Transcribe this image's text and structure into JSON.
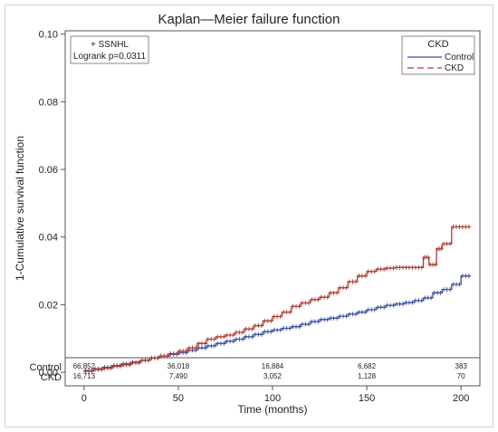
{
  "chart_data": {
    "type": "line",
    "title": "Kaplan—Meier failure function",
    "xlabel": "Time (months)",
    "ylabel": "1-Cumulative survival function",
    "xlim": [
      -10,
      210
    ],
    "ylim": [
      -0.004,
      0.101
    ],
    "x_ticks": [
      0,
      50,
      100,
      150,
      200
    ],
    "y_ticks": [
      "0.00",
      "0.02",
      "0.04",
      "0.06",
      "0.08",
      "0.10"
    ],
    "y_tick_values": [
      0,
      0.02,
      0.04,
      0.06,
      0.08,
      0.1
    ],
    "grid": false,
    "censor_marker": "+",
    "annotation": [
      "+ SSNHL",
      "Logrank p=0.0311"
    ],
    "legend": {
      "title": "CKD",
      "position": "top-right"
    },
    "series": [
      {
        "name": "Control",
        "color": "#3a4f9e",
        "dash": "solid",
        "x": [
          0,
          5,
          10,
          15,
          20,
          25,
          30,
          35,
          40,
          45,
          50,
          55,
          60,
          65,
          70,
          75,
          80,
          85,
          90,
          95,
          100,
          105,
          110,
          115,
          120,
          125,
          130,
          135,
          140,
          145,
          150,
          155,
          160,
          165,
          170,
          175,
          180,
          185,
          190,
          195,
          200,
          205
        ],
        "y": [
          0.0005,
          0.001,
          0.0015,
          0.002,
          0.0025,
          0.003,
          0.0036,
          0.0042,
          0.0048,
          0.0053,
          0.0058,
          0.0065,
          0.0072,
          0.0078,
          0.0085,
          0.0092,
          0.0098,
          0.0105,
          0.0112,
          0.012,
          0.0125,
          0.013,
          0.0135,
          0.0142,
          0.015,
          0.0156,
          0.016,
          0.0166,
          0.0172,
          0.0178,
          0.0185,
          0.0192,
          0.0198,
          0.0202,
          0.0206,
          0.0212,
          0.022,
          0.0235,
          0.0245,
          0.026,
          0.0285,
          0.0285
        ]
      },
      {
        "name": "CKD",
        "color": "#b03a2e",
        "dash": "dashed",
        "x": [
          0,
          5,
          10,
          15,
          20,
          25,
          30,
          35,
          40,
          45,
          50,
          55,
          60,
          65,
          70,
          75,
          80,
          85,
          90,
          95,
          100,
          105,
          110,
          115,
          120,
          125,
          130,
          135,
          140,
          145,
          150,
          155,
          160,
          165,
          170,
          175,
          180,
          183,
          187,
          190,
          195,
          200,
          205
        ],
        "y": [
          0.0003,
          0.0008,
          0.0012,
          0.0018,
          0.0022,
          0.0028,
          0.0035,
          0.0042,
          0.0048,
          0.0055,
          0.0063,
          0.0072,
          0.0085,
          0.0098,
          0.0105,
          0.011,
          0.0118,
          0.0128,
          0.0138,
          0.0152,
          0.0165,
          0.0178,
          0.0195,
          0.0205,
          0.0215,
          0.0222,
          0.0235,
          0.025,
          0.0268,
          0.0285,
          0.0298,
          0.0305,
          0.0308,
          0.031,
          0.031,
          0.031,
          0.034,
          0.0318,
          0.0365,
          0.038,
          0.043,
          0.043,
          0.043
        ]
      }
    ],
    "at_risk": {
      "x": [
        0,
        50,
        100,
        150,
        200
      ],
      "rows": [
        {
          "label": "Control",
          "values": [
            "66,852",
            "36,018",
            "16,884",
            "6,682",
            "383"
          ]
        },
        {
          "label": "CKD",
          "values": [
            "16,713",
            "7,490",
            "3,052",
            "1,128",
            "70"
          ]
        }
      ]
    }
  }
}
